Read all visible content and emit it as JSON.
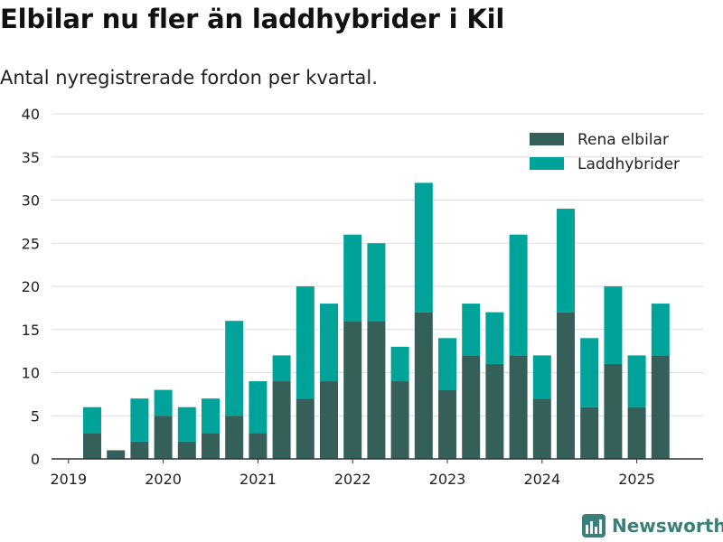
{
  "title": "Elbilar nu fler än laddhybrider i Kil",
  "subtitle": "Antal nyregistrerade fordon per kvartal.",
  "brand": "Newsworthy",
  "colors": {
    "electric": "#356059",
    "hybrid": "#00a39a",
    "grid": "#dddddd",
    "brand": "#3a8079"
  },
  "chart_data": {
    "type": "bar",
    "stacked": true,
    "categories": [
      "2019-Q2",
      "2019-Q3",
      "2019-Q4",
      "2020-Q1",
      "2020-Q2",
      "2020-Q3",
      "2020-Q4",
      "2021-Q1",
      "2021-Q2",
      "2021-Q3",
      "2021-Q4",
      "2022-Q1",
      "2022-Q2",
      "2022-Q3",
      "2022-Q4",
      "2023-Q1",
      "2023-Q2",
      "2023-Q3",
      "2023-Q4",
      "2024-Q1",
      "2024-Q2",
      "2024-Q3",
      "2024-Q4",
      "2025-Q1",
      "2025-Q2"
    ],
    "series": [
      {
        "name": "Rena elbilar",
        "values": [
          3,
          1,
          2,
          5,
          2,
          3,
          5,
          3,
          9,
          7,
          9,
          16,
          16,
          9,
          17,
          8,
          12,
          11,
          12,
          7,
          17,
          6,
          11,
          6,
          12
        ]
      },
      {
        "name": "Laddhybrider",
        "values": [
          3,
          0,
          5,
          3,
          4,
          4,
          11,
          6,
          3,
          13,
          9,
          10,
          9,
          4,
          15,
          6,
          6,
          6,
          14,
          5,
          12,
          8,
          9,
          6,
          6
        ]
      }
    ],
    "x_ticks": [
      "2019",
      "2020",
      "2021",
      "2022",
      "2023",
      "2024",
      "2025"
    ],
    "y_ticks": [
      "0",
      "5",
      "10",
      "15",
      "20",
      "25",
      "30",
      "35",
      "40"
    ],
    "ylim": [
      0,
      40
    ],
    "xlabel": "",
    "ylabel": "",
    "grid": true,
    "legend": {
      "position": "top-right",
      "labels": [
        "Rena elbilar",
        "Laddhybrider"
      ]
    }
  }
}
